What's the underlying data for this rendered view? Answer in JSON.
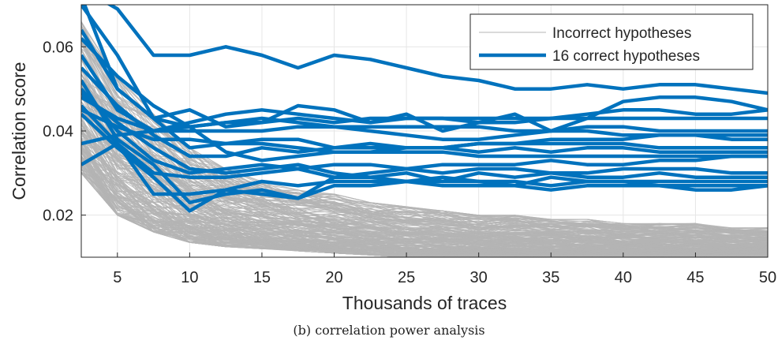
{
  "caption": "(b) correlation power analysis",
  "chart_data": {
    "type": "line",
    "xlabel": "Thousands of traces",
    "ylabel": "Correlation score",
    "xlim": [
      2.5,
      50
    ],
    "ylim": [
      0.01,
      0.07
    ],
    "x_ticks": [
      "5",
      "10",
      "15",
      "20",
      "25",
      "30",
      "35",
      "40",
      "45",
      "50"
    ],
    "y_ticks": [
      "0.02",
      "0.04",
      "0.06"
    ],
    "grid": true,
    "legend_position": "top-right",
    "legend": [
      {
        "label": "Incorrect hypotheses",
        "color": "#b4b4b4"
      },
      {
        "label": "16 correct hypotheses",
        "color": "#0072bd"
      }
    ],
    "x": [
      2.5,
      5,
      7.5,
      10,
      12.5,
      15,
      17.5,
      20,
      22.5,
      25,
      27.5,
      30,
      32.5,
      35,
      37.5,
      40,
      42.5,
      45,
      47.5,
      50
    ],
    "incorrect_band": {
      "count": 240,
      "color": "#b4b4b4",
      "lower": [
        0.03,
        0.02,
        0.016,
        0.0135,
        0.0125,
        0.012,
        0.0115,
        0.011,
        0.0105,
        0.01,
        0.01,
        0.01,
        0.01,
        0.01,
        0.01,
        0.01,
        0.01,
        0.01,
        0.01,
        0.01
      ],
      "upper": [
        0.066,
        0.053,
        0.044,
        0.036,
        0.031,
        0.028,
        0.026,
        0.025,
        0.023,
        0.022,
        0.021,
        0.02,
        0.02,
        0.019,
        0.019,
        0.018,
        0.018,
        0.018,
        0.017,
        0.017
      ]
    },
    "series": [
      {
        "color": "#0072bd",
        "values": [
          0.072,
          0.05,
          0.043,
          0.045,
          0.041,
          0.042,
          0.046,
          0.045,
          0.042,
          0.044,
          0.04,
          0.042,
          0.044,
          0.04,
          0.043,
          0.047,
          0.048,
          0.048,
          0.047,
          0.045
        ]
      },
      {
        "color": "#0072bd",
        "values": [
          0.064,
          0.05,
          0.043,
          0.041,
          0.042,
          0.043,
          0.042,
          0.041,
          0.04,
          0.039,
          0.038,
          0.038,
          0.039,
          0.04,
          0.04,
          0.039,
          0.039,
          0.039,
          0.038,
          0.038
        ]
      },
      {
        "color": "#0072bd",
        "values": [
          0.058,
          0.045,
          0.04,
          0.042,
          0.044,
          0.045,
          0.044,
          0.043,
          0.042,
          0.043,
          0.043,
          0.042,
          0.042,
          0.043,
          0.044,
          0.045,
          0.045,
          0.044,
          0.044,
          0.045
        ]
      },
      {
        "color": "#0072bd",
        "values": [
          0.055,
          0.046,
          0.039,
          0.034,
          0.034,
          0.036,
          0.035,
          0.036,
          0.037,
          0.036,
          0.036,
          0.035,
          0.036,
          0.035,
          0.036,
          0.036,
          0.035,
          0.035,
          0.035,
          0.035
        ]
      },
      {
        "color": "#0072bd",
        "values": [
          0.05,
          0.04,
          0.033,
          0.03,
          0.031,
          0.032,
          0.031,
          0.032,
          0.032,
          0.031,
          0.032,
          0.032,
          0.032,
          0.033,
          0.032,
          0.032,
          0.033,
          0.033,
          0.034,
          0.034
        ]
      },
      {
        "color": "#0072bd",
        "values": [
          0.048,
          0.043,
          0.04,
          0.04,
          0.04,
          0.04,
          0.041,
          0.041,
          0.041,
          0.041,
          0.041,
          0.041,
          0.04,
          0.04,
          0.041,
          0.041,
          0.04,
          0.04,
          0.04,
          0.04
        ]
      },
      {
        "color": "#0072bd",
        "values": [
          0.046,
          0.037,
          0.03,
          0.029,
          0.029,
          0.03,
          0.031,
          0.029,
          0.03,
          0.031,
          0.03,
          0.031,
          0.031,
          0.03,
          0.03,
          0.031,
          0.031,
          0.031,
          0.03,
          0.03
        ]
      },
      {
        "color": "#0072bd",
        "values": [
          0.044,
          0.036,
          0.029,
          0.021,
          0.026,
          0.028,
          0.027,
          0.028,
          0.028,
          0.028,
          0.028,
          0.028,
          0.028,
          0.027,
          0.028,
          0.028,
          0.028,
          0.028,
          0.028,
          0.028
        ]
      },
      {
        "color": "#0072bd",
        "values": [
          0.07,
          0.058,
          0.043,
          0.036,
          0.037,
          0.038,
          0.038,
          0.036,
          0.036,
          0.036,
          0.036,
          0.037,
          0.037,
          0.037,
          0.037,
          0.037,
          0.036,
          0.036,
          0.036,
          0.036
        ]
      },
      {
        "color": "#0072bd",
        "values": [
          0.049,
          0.042,
          0.036,
          0.031,
          0.03,
          0.031,
          0.032,
          0.03,
          0.029,
          0.03,
          0.028,
          0.03,
          0.029,
          0.03,
          0.029,
          0.029,
          0.03,
          0.029,
          0.029,
          0.029
        ]
      },
      {
        "color": "#0072bd",
        "values": [
          0.052,
          0.038,
          0.032,
          0.023,
          0.025,
          0.026,
          0.024,
          0.029,
          0.029,
          0.028,
          0.029,
          0.028,
          0.027,
          0.029,
          0.028,
          0.028,
          0.027,
          0.027,
          0.027,
          0.027
        ]
      },
      {
        "color": "#0072bd",
        "values": [
          0.045,
          0.041,
          0.038,
          0.038,
          0.037,
          0.037,
          0.036,
          0.035,
          0.035,
          0.035,
          0.035,
          0.034,
          0.034,
          0.034,
          0.034,
          0.034,
          0.034,
          0.034,
          0.034,
          0.034
        ]
      },
      {
        "color": "#0072bd",
        "values": [
          0.037,
          0.039,
          0.04,
          0.041,
          0.042,
          0.042,
          0.043,
          0.042,
          0.043,
          0.043,
          0.043,
          0.043,
          0.043,
          0.043,
          0.043,
          0.043,
          0.043,
          0.043,
          0.043,
          0.043
        ]
      },
      {
        "color": "#0072bd",
        "values": [
          0.032,
          0.037,
          0.025,
          0.025,
          0.026,
          0.025,
          0.024,
          0.027,
          0.027,
          0.028,
          0.027,
          0.027,
          0.027,
          0.026,
          0.027,
          0.027,
          0.027,
          0.026,
          0.026,
          0.027
        ]
      },
      {
        "color": "#0072bd",
        "values": [
          0.062,
          0.053,
          0.046,
          0.041,
          0.035,
          0.033,
          0.034,
          0.035,
          0.035,
          0.036,
          0.036,
          0.037,
          0.037,
          0.038,
          0.038,
          0.038,
          0.039,
          0.039,
          0.039,
          0.039
        ]
      },
      {
        "color": "#0072bd",
        "values": [
          0.074,
          0.069,
          0.058,
          0.058,
          0.06,
          0.058,
          0.055,
          0.058,
          0.057,
          0.055,
          0.053,
          0.052,
          0.05,
          0.05,
          0.051,
          0.05,
          0.051,
          0.051,
          0.05,
          0.049
        ]
      }
    ]
  }
}
